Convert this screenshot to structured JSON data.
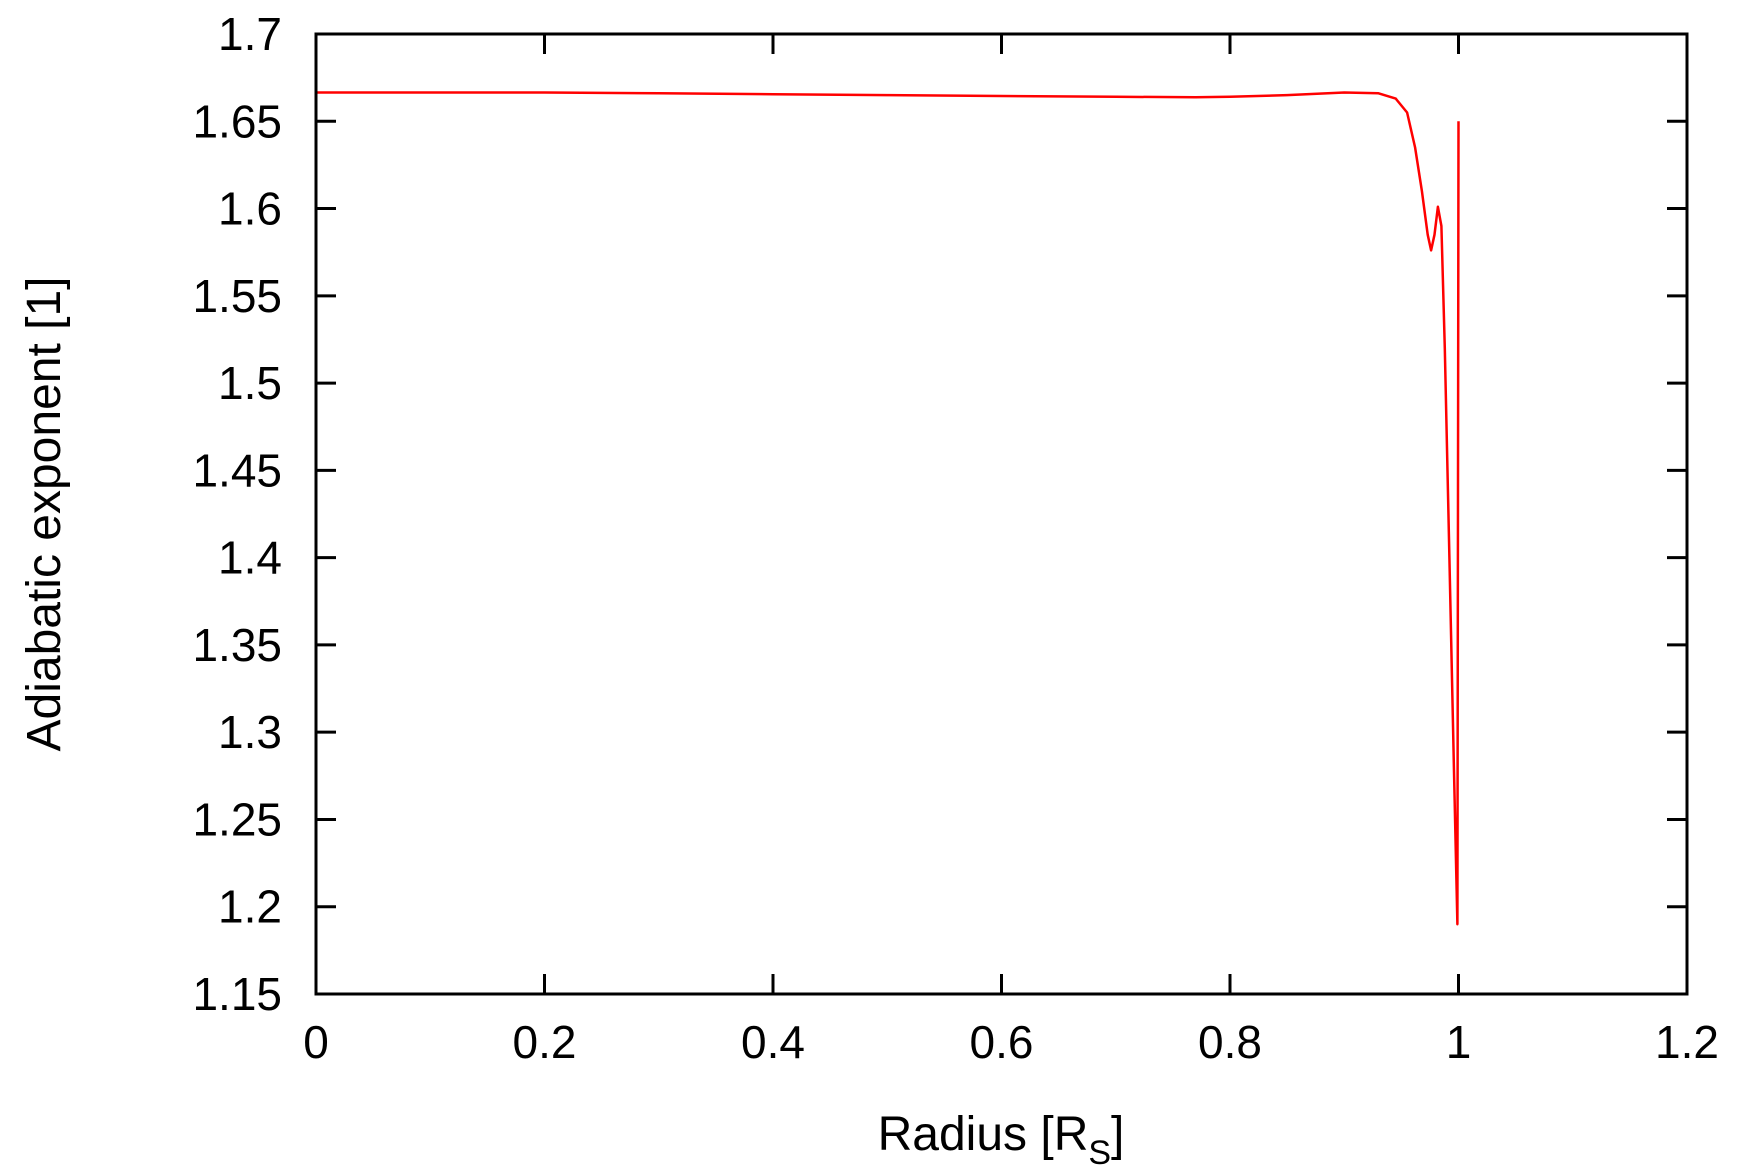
{
  "chart_data": {
    "type": "line",
    "xlabel": "Radius [R",
    "xlabel_sub": "S",
    "xlabel_end": "]",
    "ylabel": "Adiabatic exponent [1]",
    "xlim": [
      0,
      1.2
    ],
    "ylim": [
      1.15,
      1.7
    ],
    "xticks": [
      "0",
      "0.2",
      "0.4",
      "0.6",
      "0.8",
      "1",
      "1.2"
    ],
    "yticks": [
      "1.15",
      "1.2",
      "1.25",
      "1.3",
      "1.35",
      "1.4",
      "1.45",
      "1.5",
      "1.55",
      "1.6",
      "1.65",
      "1.7"
    ],
    "grid": false,
    "series": [
      {
        "color": "#ff0000",
        "points": [
          [
            0.0,
            1.6665
          ],
          [
            0.1,
            1.6665
          ],
          [
            0.2,
            1.6665
          ],
          [
            0.3,
            1.666
          ],
          [
            0.4,
            1.6655
          ],
          [
            0.5,
            1.665
          ],
          [
            0.6,
            1.6645
          ],
          [
            0.7,
            1.664
          ],
          [
            0.77,
            1.6638
          ],
          [
            0.8,
            1.664
          ],
          [
            0.85,
            1.665
          ],
          [
            0.9,
            1.6665
          ],
          [
            0.93,
            1.666
          ],
          [
            0.945,
            1.663
          ],
          [
            0.955,
            1.655
          ],
          [
            0.962,
            1.635
          ],
          [
            0.968,
            1.61
          ],
          [
            0.973,
            1.585
          ],
          [
            0.976,
            1.576
          ],
          [
            0.979,
            1.585
          ],
          [
            0.982,
            1.601
          ],
          [
            0.985,
            1.59
          ],
          [
            0.988,
            1.52
          ],
          [
            0.992,
            1.4
          ],
          [
            0.996,
            1.28
          ],
          [
            0.999,
            1.19
          ],
          [
            1.0,
            1.65
          ]
        ]
      }
    ]
  }
}
